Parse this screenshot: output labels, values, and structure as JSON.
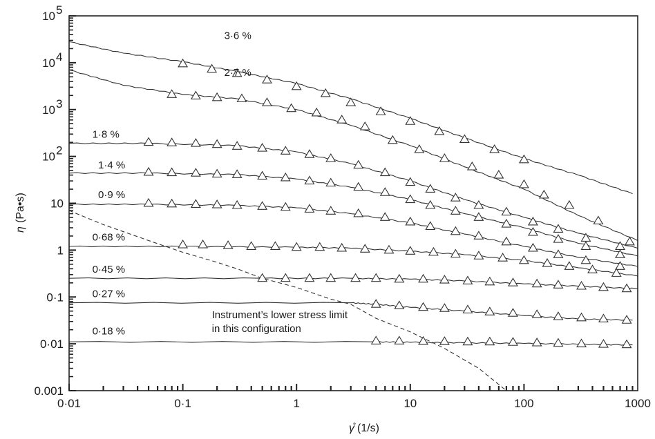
{
  "chart_data": {
    "type": "line",
    "x_scale": "log",
    "y_scale": "log",
    "xlim": [
      0.01,
      1000
    ],
    "ylim": [
      0.001,
      100000
    ],
    "xlabel_symbol": "γ̊",
    "xlabel": "(1/s)",
    "ylabel_symbol": "η",
    "ylabel": "(Pa•s)",
    "x_ticks": [
      {
        "value": 0.01,
        "label": "0·01"
      },
      {
        "value": 0.1,
        "label": "0·1"
      },
      {
        "value": 1,
        "label": "1"
      },
      {
        "value": 10,
        "label": "10"
      },
      {
        "value": 100,
        "label": "100"
      },
      {
        "value": 1000,
        "label": "1000"
      }
    ],
    "y_ticks": [
      {
        "value": 0.001,
        "label": "0.001"
      },
      {
        "value": 0.01,
        "label": "0·01"
      },
      {
        "value": 0.1,
        "label": "0·1"
      },
      {
        "value": 1,
        "label": "1"
      },
      {
        "value": 10,
        "label": "10"
      },
      {
        "value": 100,
        "base": "10",
        "exp": "2"
      },
      {
        "value": 1000,
        "base": "10",
        "exp": "3"
      },
      {
        "value": 10000,
        "base": "10",
        "exp": "4"
      },
      {
        "value": 100000,
        "base": "10",
        "exp": "5"
      }
    ],
    "series": [
      {
        "name": "3·6 %",
        "label_at": [
          0.1,
          32000
        ],
        "line": [
          [
            0.01,
            28000
          ],
          [
            0.03,
            16000
          ],
          [
            0.1,
            10500
          ],
          [
            0.3,
            6500
          ],
          [
            1,
            3600
          ],
          [
            3,
            1700
          ],
          [
            10,
            650
          ],
          [
            30,
            250
          ],
          [
            100,
            90
          ],
          [
            300,
            40
          ],
          [
            900,
            16
          ]
        ],
        "markers": [
          [
            0.1,
            9500
          ],
          [
            0.18,
            7300
          ],
          [
            0.3,
            5900
          ],
          [
            0.55,
            4300
          ],
          [
            1,
            3100
          ],
          [
            1.8,
            2200
          ],
          [
            3,
            1400
          ],
          [
            5.5,
            900
          ],
          [
            10,
            560
          ],
          [
            18,
            340
          ],
          [
            30,
            230
          ],
          [
            55,
            140
          ],
          [
            100,
            85
          ]
        ]
      },
      {
        "name": "2·7 %",
        "label_at": [
          0.1,
          5200
        ],
        "line": [
          [
            0.01,
            7000
          ],
          [
            0.03,
            3300
          ],
          [
            0.1,
            2100
          ],
          [
            0.3,
            1700
          ],
          [
            1,
            1000
          ],
          [
            3,
            460
          ],
          [
            10,
            170
          ],
          [
            30,
            60
          ],
          [
            100,
            20
          ],
          [
            300,
            5.5
          ],
          [
            1000,
            1.6
          ]
        ],
        "markers": [
          [
            0.08,
            2100
          ],
          [
            0.13,
            1950
          ],
          [
            0.2,
            1800
          ],
          [
            0.33,
            1700
          ],
          [
            0.55,
            1400
          ],
          [
            0.9,
            1050
          ],
          [
            1.5,
            850
          ],
          [
            2.5,
            600
          ],
          [
            4,
            430
          ],
          [
            7,
            220
          ],
          [
            12,
            140
          ],
          [
            20,
            90
          ],
          [
            35,
            60
          ],
          [
            60,
            40
          ],
          [
            100,
            25
          ],
          [
            150,
            15
          ],
          [
            250,
            9
          ],
          [
            450,
            4.2
          ],
          [
            850,
            1.5
          ]
        ]
      },
      {
        "name": "1·8 %",
        "label_at": [
          0.016,
          250
        ],
        "line": [
          [
            0.01,
            190
          ],
          [
            0.05,
            190
          ],
          [
            0.3,
            170
          ],
          [
            1,
            125
          ],
          [
            3,
            70
          ],
          [
            10,
            30
          ],
          [
            30,
            12
          ],
          [
            100,
            5
          ],
          [
            300,
            2.3
          ],
          [
            1000,
            1.1
          ]
        ],
        "markers": [
          [
            0.05,
            200
          ],
          [
            0.08,
            195
          ],
          [
            0.13,
            190
          ],
          [
            0.2,
            180
          ],
          [
            0.3,
            165
          ],
          [
            0.5,
            150
          ],
          [
            0.8,
            130
          ],
          [
            1.3,
            110
          ],
          [
            2,
            90
          ],
          [
            3.5,
            65
          ],
          [
            6,
            45
          ],
          [
            10,
            28
          ],
          [
            15,
            20
          ],
          [
            25,
            13
          ],
          [
            40,
            9
          ],
          [
            70,
            6.5
          ],
          [
            120,
            4
          ],
          [
            200,
            2.8
          ],
          [
            350,
            1.8
          ],
          [
            700,
            1.2
          ]
        ]
      },
      {
        "name": "1·4 %",
        "label_at": [
          0.018,
          55
        ],
        "line": [
          [
            0.01,
            44
          ],
          [
            0.05,
            44
          ],
          [
            0.3,
            41
          ],
          [
            1,
            33
          ],
          [
            3,
            22
          ],
          [
            10,
            12
          ],
          [
            30,
            6
          ],
          [
            100,
            3
          ],
          [
            300,
            1.4
          ],
          [
            1000,
            0.75
          ]
        ],
        "markers": [
          [
            0.05,
            46
          ],
          [
            0.08,
            45
          ],
          [
            0.13,
            44
          ],
          [
            0.2,
            42
          ],
          [
            0.3,
            41
          ],
          [
            0.5,
            38
          ],
          [
            0.8,
            35
          ],
          [
            1.3,
            30
          ],
          [
            2,
            27
          ],
          [
            3.5,
            22
          ],
          [
            6,
            17
          ],
          [
            10,
            12
          ],
          [
            15,
            9
          ],
          [
            25,
            6.8
          ],
          [
            40,
            5
          ],
          [
            70,
            3.6
          ],
          [
            120,
            2.4
          ],
          [
            200,
            1.7
          ],
          [
            350,
            1.2
          ],
          [
            700,
            0.8
          ]
        ]
      },
      {
        "name": "0·9 %",
        "label_at": [
          0.018,
          13
        ],
        "line": [
          [
            0.01,
            9.5
          ],
          [
            0.05,
            9.5
          ],
          [
            0.3,
            9
          ],
          [
            1,
            8
          ],
          [
            3,
            6
          ],
          [
            10,
            3.8
          ],
          [
            30,
            2.2
          ],
          [
            100,
            1.2
          ],
          [
            300,
            0.7
          ],
          [
            1000,
            0.45
          ]
        ],
        "markers": [
          [
            0.05,
            10
          ],
          [
            0.08,
            9.7
          ],
          [
            0.13,
            9.5
          ],
          [
            0.2,
            9.3
          ],
          [
            0.3,
            9
          ],
          [
            0.5,
            8.6
          ],
          [
            0.8,
            8.2
          ],
          [
            1.3,
            7.5
          ],
          [
            2,
            6.8
          ],
          [
            3.5,
            6
          ],
          [
            6,
            5
          ],
          [
            10,
            4
          ],
          [
            15,
            3.2
          ],
          [
            25,
            2.5
          ],
          [
            40,
            2
          ],
          [
            70,
            1.5
          ],
          [
            120,
            1.1
          ],
          [
            200,
            0.8
          ],
          [
            350,
            0.6
          ],
          [
            700,
            0.45
          ]
        ]
      },
      {
        "name": "0·68 %",
        "label_at": [
          0.016,
          1.6
        ],
        "line": [
          [
            0.01,
            1.2
          ],
          [
            0.1,
            1.2
          ],
          [
            1,
            1.15
          ],
          [
            3,
            1.1
          ],
          [
            10,
            0.95
          ],
          [
            30,
            0.8
          ],
          [
            100,
            0.6
          ],
          [
            300,
            0.42
          ],
          [
            1000,
            0.28
          ]
        ],
        "markers": [
          [
            0.1,
            1.3
          ],
          [
            0.15,
            1.3
          ],
          [
            0.25,
            1.25
          ],
          [
            0.4,
            1.2
          ],
          [
            0.65,
            1.2
          ],
          [
            1,
            1.15
          ],
          [
            1.6,
            1.15
          ],
          [
            2.5,
            1.1
          ],
          [
            4,
            1.05
          ],
          [
            6.5,
            1.0
          ],
          [
            10,
            0.95
          ],
          [
            16,
            0.9
          ],
          [
            25,
            0.82
          ],
          [
            40,
            0.75
          ],
          [
            65,
            0.68
          ],
          [
            100,
            0.6
          ],
          [
            160,
            0.52
          ],
          [
            250,
            0.45
          ],
          [
            400,
            0.38
          ],
          [
            650,
            0.32
          ]
        ]
      },
      {
        "name": "0·45 %",
        "label_at": [
          0.016,
          0.33
        ],
        "line": [
          [
            0.01,
            0.25
          ],
          [
            0.5,
            0.25
          ],
          [
            3,
            0.25
          ],
          [
            10,
            0.24
          ],
          [
            30,
            0.22
          ],
          [
            100,
            0.19
          ],
          [
            300,
            0.17
          ],
          [
            1000,
            0.15
          ]
        ],
        "markers": [
          [
            0.5,
            0.25
          ],
          [
            0.8,
            0.25
          ],
          [
            1.3,
            0.25
          ],
          [
            2,
            0.25
          ],
          [
            3.3,
            0.25
          ],
          [
            5,
            0.25
          ],
          [
            8,
            0.24
          ],
          [
            13,
            0.24
          ],
          [
            20,
            0.23
          ],
          [
            32,
            0.22
          ],
          [
            50,
            0.21
          ],
          [
            80,
            0.2
          ],
          [
            130,
            0.19
          ],
          [
            200,
            0.18
          ],
          [
            320,
            0.17
          ],
          [
            500,
            0.16
          ],
          [
            800,
            0.15
          ]
        ]
      },
      {
        "name": "0·27 %",
        "label_at": [
          0.016,
          0.1
        ],
        "line": [
          [
            0.01,
            0.075
          ],
          [
            3,
            0.075
          ],
          [
            5,
            0.07
          ],
          [
            10,
            0.06
          ],
          [
            30,
            0.05
          ],
          [
            100,
            0.04
          ],
          [
            300,
            0.034
          ],
          [
            900,
            0.032
          ]
        ],
        "markers": [
          [
            5,
            0.07
          ],
          [
            8,
            0.065
          ],
          [
            13,
            0.06
          ],
          [
            20,
            0.057
          ],
          [
            32,
            0.053
          ],
          [
            50,
            0.048
          ],
          [
            80,
            0.045
          ],
          [
            130,
            0.042
          ],
          [
            200,
            0.038
          ],
          [
            320,
            0.036
          ],
          [
            500,
            0.034
          ],
          [
            800,
            0.032
          ]
        ]
      },
      {
        "name": "0·18 %",
        "label_at": [
          0.016,
          0.016
        ],
        "line": [
          [
            0.01,
            0.011
          ],
          [
            5,
            0.011
          ],
          [
            10,
            0.0108
          ],
          [
            30,
            0.0105
          ],
          [
            100,
            0.0102
          ],
          [
            300,
            0.0098
          ],
          [
            900,
            0.0095
          ]
        ],
        "markers": [
          [
            5,
            0.0115
          ],
          [
            8,
            0.0115
          ],
          [
            13,
            0.0113
          ],
          [
            20,
            0.0112
          ],
          [
            32,
            0.011
          ],
          [
            50,
            0.011
          ],
          [
            80,
            0.0108
          ],
          [
            130,
            0.0105
          ],
          [
            200,
            0.0103
          ],
          [
            320,
            0.01
          ],
          [
            500,
            0.0098
          ],
          [
            800,
            0.0096
          ]
        ]
      }
    ],
    "stress_limit_curve": [
      [
        0.01,
        7
      ],
      [
        0.02,
        3.5
      ],
      [
        0.05,
        1.6
      ],
      [
        0.1,
        0.9
      ],
      [
        0.2,
        0.55
      ],
      [
        0.3,
        0.4
      ],
      [
        0.5,
        0.25
      ],
      [
        1,
        0.16
      ],
      [
        2,
        0.09
      ],
      [
        3,
        0.07
      ],
      [
        5,
        0.035
      ],
      [
        10,
        0.018
      ],
      [
        20,
        0.008
      ],
      [
        40,
        0.003
      ],
      [
        70,
        0.001
      ]
    ],
    "annotation": {
      "lines": [
        "Instrument’s lower stress limit",
        "in this configuration"
      ],
      "anchor": [
        0.18,
        0.035
      ]
    }
  }
}
